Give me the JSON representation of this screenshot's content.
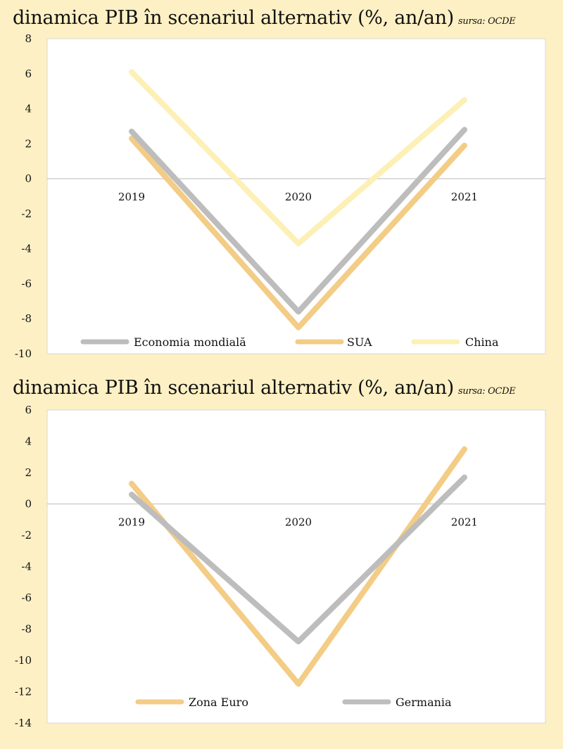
{
  "colors": {
    "background": "#fdf0c4",
    "plot_area": "#ffffff",
    "gray": "#bdbdbd",
    "orange": "#f3cc85",
    "light_yellow": "#fdf0b6",
    "zero_line": "#d0d0d0"
  },
  "chart_data": [
    {
      "type": "line",
      "title": "dinamica PIB în scenariul alternativ (%, an/an)",
      "source": "sursa: OCDE",
      "categories": [
        "2019",
        "2020",
        "2021"
      ],
      "ylim": [
        -10,
        8
      ],
      "yticks": [
        "8",
        "6",
        "4",
        "2",
        "0",
        "-2",
        "-4",
        "-6",
        "-8",
        "-10"
      ],
      "legend_position": "bottom",
      "grid": false,
      "series": [
        {
          "name": "Economia mondială",
          "color": "#bdbdbd",
          "values": [
            2.7,
            -7.6,
            2.8
          ]
        },
        {
          "name": "SUA",
          "color": "#f3cc85",
          "values": [
            2.3,
            -8.5,
            1.9
          ]
        },
        {
          "name": "China",
          "color": "#fdf0b6",
          "values": [
            6.1,
            -3.7,
            4.5
          ]
        }
      ]
    },
    {
      "type": "line",
      "title": "dinamica PIB în scenariul alternativ (%, an/an)",
      "source": "sursa: OCDE",
      "categories": [
        "2019",
        "2020",
        "2021"
      ],
      "ylim": [
        -14,
        6
      ],
      "yticks": [
        "6",
        "4",
        "2",
        "0",
        "-2",
        "-4",
        "-6",
        "-8",
        "-10",
        "-12",
        "-14"
      ],
      "legend_position": "bottom",
      "grid": false,
      "series": [
        {
          "name": "Zona Euro",
          "color": "#f3cc85",
          "values": [
            1.3,
            -11.5,
            3.5
          ]
        },
        {
          "name": "Germania",
          "color": "#bdbdbd",
          "values": [
            0.6,
            -8.8,
            1.7
          ]
        }
      ]
    }
  ]
}
